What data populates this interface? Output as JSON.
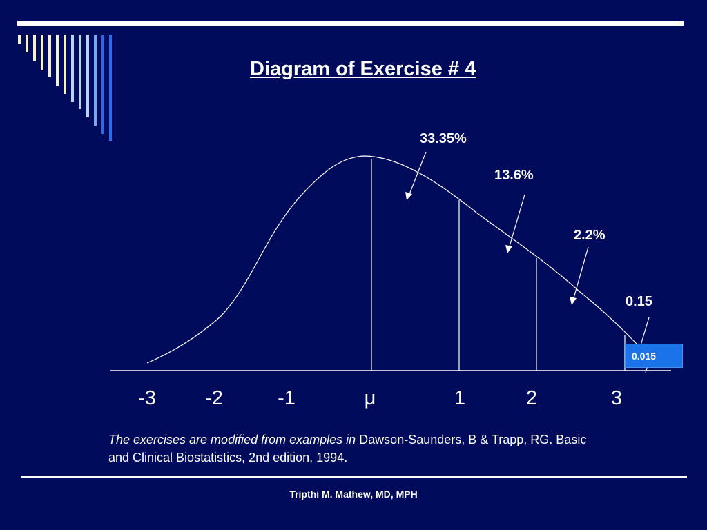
{
  "title": "Diagram of Exercise # 4",
  "percent_labels": [
    "33.35%",
    "13.6%",
    "2.2%",
    "0.15"
  ],
  "tail_value": "0.015",
  "x_ticks": [
    "-3",
    "-2",
    "-1",
    "μ",
    "1",
    "2",
    "3"
  ],
  "citation": {
    "italic_part": "The exercises are modified from examples in",
    "normal_part": "Dawson-Saunders, B & Trapp, RG. Basic and Clinical Biostatistics, 2nd edition, 1994."
  },
  "footer": "Tripthi M. Mathew, MD, MPH",
  "colors": {
    "background": "#000b5c",
    "foreground": "#ffffff",
    "highlight_box": "#1a73e8",
    "stripe_colors": [
      "#f5f0c8",
      "#b8d4f0",
      "#2e6be6"
    ]
  }
}
